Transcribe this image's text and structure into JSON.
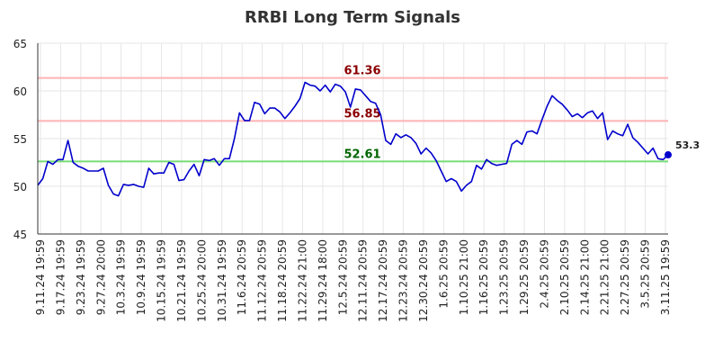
{
  "chart_data": {
    "type": "line",
    "title": "RRBI Long Term Signals",
    "ylim": [
      45,
      65
    ],
    "yticks": [
      "45",
      "50",
      "55",
      "60",
      "65"
    ],
    "grid": true,
    "xtick_labels": [
      "9.11.24 19:59",
      "9.17.24 19:59",
      "9.23.24 19:59",
      "9.27.24 20:00",
      "10.3.24 19:59",
      "10.9.24 19:59",
      "10.15.24 19:59",
      "10.21.24 19:59",
      "10.25.24 20:00",
      "10.31.24 19:59",
      "11.6.24 20:59",
      "11.12.24 20:59",
      "11.18.24 20:59",
      "11.22.24 21:00",
      "11.29.24 18:00",
      "12.5.24 20:59",
      "12.11.24 20:59",
      "12.17.24 20:59",
      "12.23.24 20:59",
      "12.30.24 20:59",
      "1.6.25 20:59",
      "1.10.25 21:00",
      "1.16.25 20:59",
      "1.23.25 20:59",
      "1.29.25 20:59",
      "2.4.25 20:59",
      "2.10.25 20:59",
      "2.14.25 21:00",
      "2.21.25 21:00",
      "2.27.25 20:59",
      "3.5.25 20:59",
      "3.11.25 19:59"
    ],
    "reference_lines": [
      {
        "label": "61.36",
        "value": 61.36,
        "color": "#ffb3b3",
        "label_color": "#8b0000"
      },
      {
        "label": "56.85",
        "value": 56.85,
        "color": "#ffb3b3",
        "label_color": "#8b0000"
      },
      {
        "label": "52.61",
        "value": 52.61,
        "color": "#77dd77",
        "label_color": "#006400"
      }
    ],
    "series": [
      {
        "color": "#0000cc",
        "values": [
          50.1,
          50.8,
          52.6,
          52.3,
          52.8,
          52.8,
          54.8,
          52.5,
          52.1,
          51.9,
          51.6,
          51.6,
          51.6,
          51.9,
          50.1,
          49.2,
          49.0,
          50.2,
          50.1,
          50.2,
          50.0,
          49.9,
          51.9,
          51.3,
          51.4,
          51.4,
          52.5,
          52.3,
          50.6,
          50.7,
          51.6,
          52.3,
          51.1,
          52.8,
          52.7,
          52.9,
          52.2,
          52.9,
          52.9,
          55.0,
          57.7,
          56.9,
          56.9,
          58.8,
          58.6,
          57.6,
          58.2,
          58.2,
          57.8,
          57.1,
          57.7,
          58.4,
          59.2,
          60.9,
          60.6,
          60.5,
          60.0,
          60.6,
          59.9,
          60.7,
          60.5,
          59.9,
          58.3,
          60.2,
          60.1,
          59.5,
          58.9,
          58.7,
          57.5,
          54.8,
          54.4,
          55.5,
          55.1,
          55.4,
          55.1,
          54.5,
          53.4,
          54.0,
          53.5,
          52.7,
          51.6,
          50.5,
          50.8,
          50.5,
          49.5,
          50.1,
          50.5,
          52.2,
          51.8,
          52.8,
          52.4,
          52.2,
          52.3,
          52.4,
          54.4,
          54.8,
          54.4,
          55.7,
          55.8,
          55.5,
          57.0,
          58.4,
          59.5,
          59.0,
          58.6,
          58.0,
          57.3,
          57.6,
          57.2,
          57.7,
          57.9,
          57.1,
          57.7,
          54.9,
          55.8,
          55.5,
          55.3,
          56.5,
          55.1,
          54.6,
          54.0,
          53.4,
          54.0,
          52.9,
          52.8,
          53.3
        ]
      }
    ],
    "last_point_label": "53.3"
  }
}
